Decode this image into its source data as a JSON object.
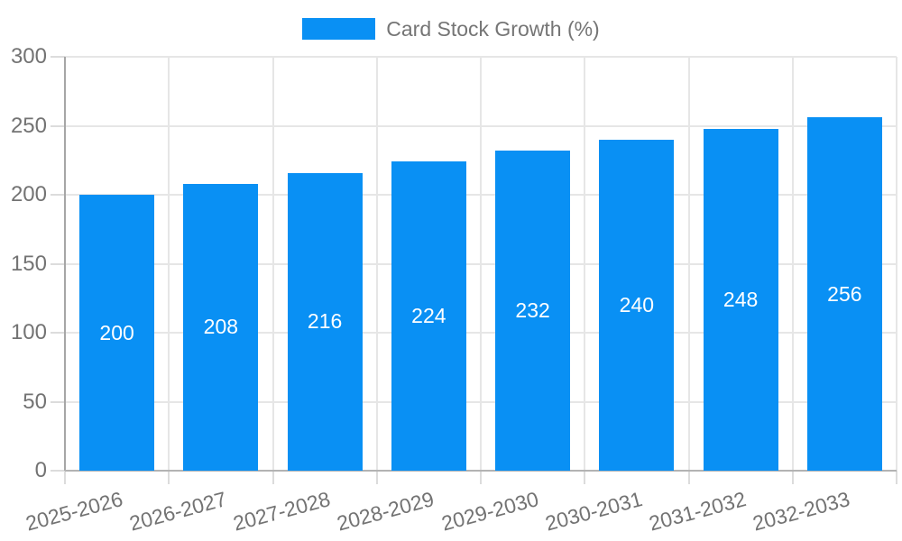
{
  "legend": {
    "label": "Card Stock Growth (%)"
  },
  "chart_data": {
    "type": "bar",
    "title": "",
    "series_name": "Card Stock Growth (%)",
    "categories": [
      "2025-2026",
      "2026-2027",
      "2027-2028",
      "2028-2029",
      "2029-2030",
      "2030-2031",
      "2031-2032",
      "2032-2033"
    ],
    "values": [
      200,
      208,
      216,
      224,
      232,
      240,
      248,
      256
    ],
    "xlabel": "",
    "ylabel": "",
    "ylim": [
      0,
      300
    ],
    "yticks": [
      0,
      50,
      100,
      150,
      200,
      250,
      300
    ],
    "grid": true,
    "legend_position": "top",
    "value_labels": "inside-center",
    "x_label_rotation_deg": -15
  },
  "colors": {
    "bar": "#0990f4",
    "value_label": "#ffffff",
    "axis_text": "#737373",
    "grid_line": "#e6e6e6",
    "axis_line": "#a6a6a6",
    "legend_text": "#757575"
  }
}
